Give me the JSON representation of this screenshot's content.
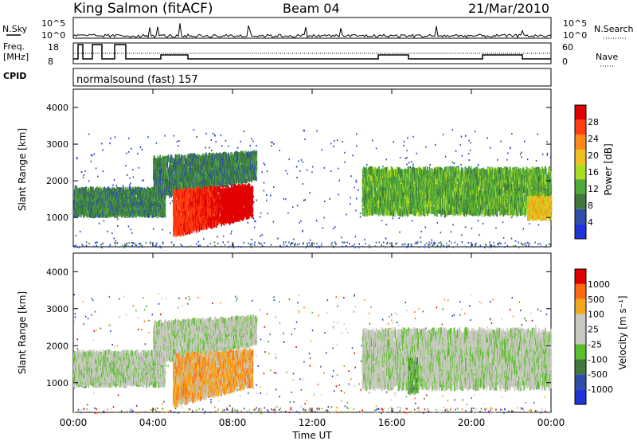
{
  "header": {
    "station": "King Salmon (fitACF)",
    "beam": "Beam 04",
    "date": "21/Mar/2010"
  },
  "params": {
    "nsky_label": "N.Sky",
    "nsearch_label": "N.Search",
    "freq_label_1": "Freq.",
    "freq_label_2": "[MHz]",
    "nave_label": "Nave",
    "cpid_label": "CPID",
    "mode": "normalsound (fast) 157",
    "nsky_ticks": [
      "10^5",
      "10^0"
    ],
    "nsearch_ticks": [
      "10^5",
      "10^0"
    ],
    "freq_ticks": [
      "18",
      "8"
    ],
    "nave_ticks": [
      "60",
      "0"
    ]
  },
  "colors": {
    "power": [
      "#1f35d8",
      "#2d4fa8",
      "#3f7a3a",
      "#4faa3a",
      "#aadd22",
      "#f0c020",
      "#ff8a1a",
      "#ff3f10",
      "#e00000"
    ],
    "velocity": [
      "#1f35d8",
      "#2d4fa8",
      "#3f7a3a",
      "#5abf28",
      "#c8c8c0",
      "#c8c8c0",
      "#f2a81a",
      "#ff6a10",
      "#e00000"
    ]
  },
  "chart_data": [
    {
      "type": "heatmap",
      "name": "power",
      "xlabel": "Time UT",
      "ylabel": "Slant Range [km]",
      "colorbar_label": "Power [dB]",
      "x_ticks": [
        "00:00",
        "04:00",
        "08:00",
        "12:00",
        "16:00",
        "20:00",
        "00:00"
      ],
      "y_ticks": [
        "1000",
        "2000",
        "3000",
        "4000"
      ],
      "ylim": [
        200,
        4500
      ],
      "colorbar_ticks": [
        "28",
        "24",
        "20",
        "16",
        "12",
        "8",
        "4"
      ],
      "regions": [
        {
          "t": [
            0.0,
            4.6
          ],
          "r": [
            1100,
            1850
          ],
          "level": 2
        },
        {
          "t": [
            4.0,
            9.2
          ],
          "r": [
            1600,
            2700
          ],
          "level": 2
        },
        {
          "t": [
            5.0,
            9.0
          ],
          "r": [
            600,
            1800
          ],
          "level": 7
        },
        {
          "t": [
            14.5,
            24.0
          ],
          "r": [
            1200,
            2400
          ],
          "level": 3
        },
        {
          "t": [
            22.8,
            24.0
          ],
          "r": [
            1000,
            1600
          ],
          "level": 5
        }
      ]
    },
    {
      "type": "heatmap",
      "name": "velocity",
      "xlabel": "Time UT",
      "ylabel": "Slant Range [km]",
      "colorbar_label": "Velocity [m s⁻¹]",
      "x_ticks": [
        "00:00",
        "04:00",
        "08:00",
        "12:00",
        "16:00",
        "20:00",
        "00:00"
      ],
      "y_ticks": [
        "1000",
        "2000",
        "3000",
        "4000"
      ],
      "ylim": [
        200,
        4500
      ],
      "colorbar_ticks": [
        "1000",
        "500",
        "100",
        "25",
        "-25",
        "-100",
        "-500",
        "-1000"
      ],
      "regions": [
        {
          "t": [
            0.0,
            4.6
          ],
          "r": [
            1000,
            1900
          ],
          "level": 4
        },
        {
          "t": [
            4.0,
            9.2
          ],
          "r": [
            1600,
            2700
          ],
          "level": 4
        },
        {
          "t": [
            5.0,
            9.0
          ],
          "r": [
            500,
            1800
          ],
          "level": 6
        },
        {
          "t": [
            14.5,
            24.0
          ],
          "r": [
            1000,
            2500
          ],
          "level": 4
        },
        {
          "t": [
            16.8,
            17.3
          ],
          "r": [
            800,
            1700
          ],
          "level": 3
        }
      ]
    }
  ]
}
